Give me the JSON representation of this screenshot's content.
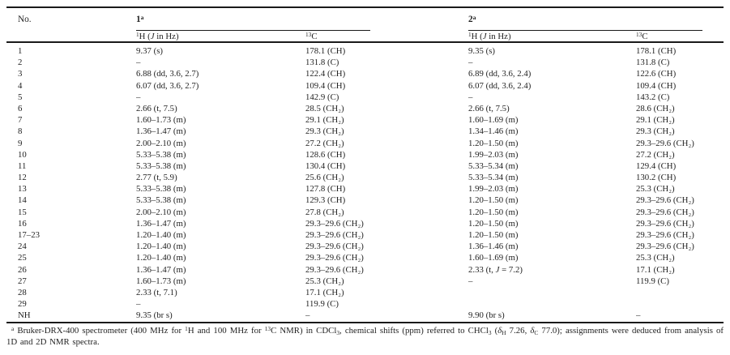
{
  "page": {
    "background": "#ffffff",
    "text_color": "#1f1f1f",
    "rule_color": "#1a1a1a"
  },
  "table": {
    "header": {
      "no": "No.",
      "group1": [
        {
          "t": "1"
        },
        {
          "t": "a",
          "s": "sup"
        }
      ],
      "group2": [
        {
          "t": "2"
        },
        {
          "t": "a",
          "s": "sup"
        }
      ],
      "h_sub": [
        {
          "t": "1",
          "s": "sup"
        },
        {
          "t": "H ("
        },
        {
          "t": "J",
          "s": "i"
        },
        {
          "t": " in Hz)"
        }
      ],
      "c_sub": [
        {
          "t": "13",
          "s": "sup"
        },
        {
          "t": "C"
        }
      ]
    },
    "rows": [
      {
        "no": "1",
        "h1": "9.37 (s)",
        "c1": "178.1 (CH)",
        "h2": "9.35 (s)",
        "c2": "178.1 (CH)"
      },
      {
        "no": "2",
        "h1": "–",
        "c1": "131.8 (C)",
        "h2": "–",
        "c2": "131.8 (C)"
      },
      {
        "no": "3",
        "h1": "6.88 (dd, 3.6, 2.7)",
        "c1": "122.4 (CH)",
        "h2": "6.89 (dd, 3.6, 2.4)",
        "c2": "122.6 (CH)"
      },
      {
        "no": "4",
        "h1": "6.07 (dd, 3.6, 2.7)",
        "c1": "109.4 (CH)",
        "h2": "6.07 (dd, 3.6, 2.4)",
        "c2": "109.4 (CH)"
      },
      {
        "no": "5",
        "h1": "–",
        "c1": "142.9 (C)",
        "h2": "–",
        "c2": "143.2 (C)"
      },
      {
        "no": "6",
        "h1": "2.66 (t, 7.5)",
        "c1": "28.5 (CH₂)",
        "h2": "2.66 (t, 7.5)",
        "c2": "28.6 (CH₂)"
      },
      {
        "no": "7",
        "h1": "1.60–1.73 (m)",
        "c1": "29.1 (CH₂)",
        "h2": "1.60–1.69 (m)",
        "c2": "29.1 (CH₂)"
      },
      {
        "no": "8",
        "h1": "1.36–1.47 (m)",
        "c1": "29.3 (CH₂)",
        "h2": "1.34–1.46 (m)",
        "c2": "29.3 (CH₂)"
      },
      {
        "no": "9",
        "h1": "2.00–2.10 (m)",
        "c1": "27.2 (CH₂)",
        "h2": "1.20–1.50 (m)",
        "c2": "29.3–29.6 (CH₂)"
      },
      {
        "no": "10",
        "h1": "5.33–5.38 (m)",
        "c1": "128.6 (CH)",
        "h2": "1.99–2.03 (m)",
        "c2": "27.2 (CH₂)"
      },
      {
        "no": "11",
        "h1": "5.33–5.38 (m)",
        "c1": "130.4 (CH)",
        "h2": "5.33–5.34 (m)",
        "c2": "129.4 (CH)"
      },
      {
        "no": "12",
        "h1": "2.77 (t, 5.9)",
        "c1": "25.6 (CH₂)",
        "h2": "5.33–5.34 (m)",
        "c2": "130.2 (CH)"
      },
      {
        "no": "13",
        "h1": "5.33–5.38 (m)",
        "c1": "127.8 (CH)",
        "h2": "1.99–2.03 (m)",
        "c2": "25.3 (CH₂)"
      },
      {
        "no": "14",
        "h1": "5.33–5.38 (m)",
        "c1": "129.3 (CH)",
        "h2": "1.20–1.50 (m)",
        "c2": "29.3–29.6 (CH₂)"
      },
      {
        "no": "15",
        "h1": "2.00–2.10 (m)",
        "c1": "27.8 (CH₂)",
        "h2": "1.20–1.50 (m)",
        "c2": "29.3–29.6 (CH₂)"
      },
      {
        "no": "16",
        "h1": "1.36–1.47 (m)",
        "c1": "29.3–29.6 (CH₂)",
        "h2": "1.20–1.50 (m)",
        "c2": "29.3–29.6 (CH₂)"
      },
      {
        "no": "17–23",
        "h1": "1.20–1.40 (m)",
        "c1": "29.3–29.6 (CH₂)",
        "h2": "1.20–1.50 (m)",
        "c2": "29.3–29.6 (CH₂)"
      },
      {
        "no": "24",
        "h1": "1.20–1.40 (m)",
        "c1": "29.3–29.6 (CH₂)",
        "h2": "1.36–1.46 (m)",
        "c2": "29.3–29.6 (CH₂)"
      },
      {
        "no": "25",
        "h1": "1.20–1.40 (m)",
        "c1": "29.3–29.6 (CH₂)",
        "h2": "1.60–1.69 (m)",
        "c2": "25.3 (CH₂)"
      },
      {
        "no": "26",
        "h1": "1.36–1.47 (m)",
        "c1": "29.3–29.6 (CH₂)",
        "h2": [
          {
            "t": "2.33 (t, "
          },
          {
            "t": "J",
            "s": "i"
          },
          {
            "t": " = 7.2)"
          }
        ],
        "c2": "17.1 (CH₂)"
      },
      {
        "no": "27",
        "h1": "1.60–1.73 (m)",
        "c1": "25.3 (CH₂)",
        "h2": "–",
        "c2": "119.9 (C)"
      },
      {
        "no": "28",
        "h1": "2.33 (t, 7.1)",
        "c1": "17.1 (CH₂)",
        "h2": "",
        "c2": ""
      },
      {
        "no": "29",
        "h1": "–",
        "c1": "119.9 (C)",
        "h2": "",
        "c2": ""
      },
      {
        "no": "NH",
        "h1": "9.35 (br s)",
        "c1": "–",
        "h2": "9.90 (br s)",
        "c2": "–"
      }
    ]
  },
  "footnote": [
    {
      "t": "a",
      "s": "sup"
    },
    {
      "t": " Bruker-DRX-400 spectrometer (400 MHz for "
    },
    {
      "t": "1",
      "s": "sup"
    },
    {
      "t": "H and 100 MHz for "
    },
    {
      "t": "13",
      "s": "sup"
    },
    {
      "t": "C NMR) in CDCl"
    },
    {
      "t": "3",
      "s": "sub"
    },
    {
      "t": ", chemical shifts (ppm) referred to CHCl"
    },
    {
      "t": "3",
      "s": "sub"
    },
    {
      "t": " ("
    },
    {
      "t": "δ",
      "s": "i"
    },
    {
      "t": "H",
      "s": "sub"
    },
    {
      "t": " 7.26, "
    },
    {
      "t": "δ",
      "s": "i"
    },
    {
      "t": "C",
      "s": "sub"
    },
    {
      "t": " 77.0); assignments were deduced from analysis of 1D and 2D NMR spectra."
    }
  ]
}
